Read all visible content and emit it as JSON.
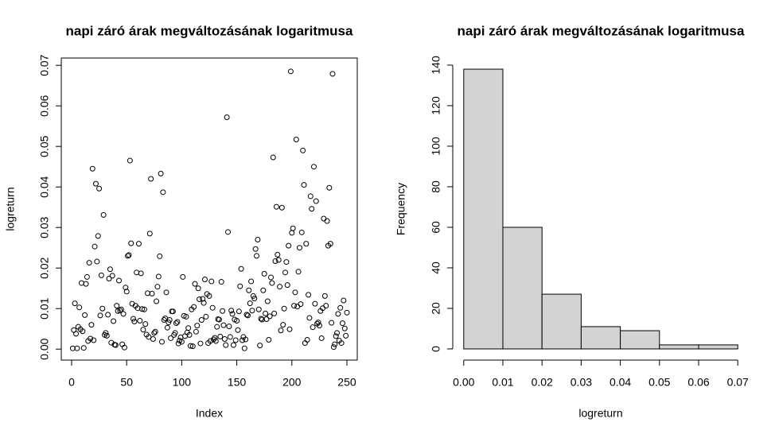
{
  "chart_data": [
    {
      "type": "scatter",
      "title": "napi záró árak megváltozásának logaritmusa",
      "xlabel": "Index",
      "ylabel": "logreturn",
      "color": "#000000",
      "xlim": [
        -9.4,
        259.4
      ],
      "ylim": [
        -0.0027,
        0.0718
      ],
      "xticks": [
        0,
        50,
        100,
        150,
        200,
        250
      ],
      "yticks": [
        {
          "value": 0,
          "label": "0.00"
        },
        {
          "value": 0.01,
          "label": "0.01"
        },
        {
          "value": 0.02,
          "label": "0.02"
        },
        {
          "value": 0.03,
          "label": "0.03"
        },
        {
          "value": 0.04,
          "label": "0.04"
        },
        {
          "value": 0.05,
          "label": "0.05"
        },
        {
          "value": 0.06,
          "label": "0.06"
        },
        {
          "value": 0.07,
          "label": "0.07"
        }
      ],
      "x": [
        1,
        2,
        3,
        4,
        5,
        6,
        7,
        8,
        9,
        10,
        11,
        12,
        13,
        14,
        15,
        16,
        17,
        18,
        19,
        20,
        21,
        22,
        23,
        24,
        25,
        26,
        27,
        28,
        29,
        30,
        31,
        32,
        33,
        34,
        35,
        36,
        37,
        38,
        39,
        40,
        41,
        42,
        43,
        44,
        45,
        46,
        47,
        48,
        49,
        50,
        51,
        52,
        53,
        54,
        55,
        56,
        57,
        58,
        59,
        60,
        61,
        62,
        63,
        64,
        65,
        66,
        67,
        68,
        69,
        70,
        71,
        72,
        73,
        74,
        75,
        76,
        77,
        78,
        79,
        80,
        81,
        82,
        83,
        84,
        85,
        86,
        87,
        88,
        89,
        90,
        91,
        92,
        93,
        94,
        95,
        96,
        97,
        98,
        99,
        100,
        101,
        102,
        103,
        104,
        105,
        106,
        107,
        108,
        109,
        110,
        111,
        112,
        113,
        114,
        115,
        116,
        117,
        118,
        119,
        120,
        121,
        122,
        123,
        124,
        125,
        126,
        127,
        128,
        129,
        130,
        131,
        132,
        133,
        134,
        135,
        136,
        137,
        138,
        139,
        140,
        141,
        142,
        143,
        144,
        145,
        146,
        147,
        148,
        149,
        150,
        151,
        152,
        153,
        154,
        155,
        156,
        157,
        158,
        159,
        160,
        161,
        162,
        163,
        164,
        165,
        166,
        167,
        168,
        169,
        170,
        171,
        172,
        173,
        174,
        175,
        176,
        177,
        178,
        179,
        180,
        181,
        182,
        183,
        184,
        185,
        186,
        187,
        188,
        189,
        190,
        191,
        192,
        193,
        194,
        195,
        196,
        197,
        198,
        199,
        200,
        201,
        202,
        203,
        204,
        205,
        206,
        207,
        208,
        209,
        210,
        211,
        212,
        213,
        214,
        215,
        216,
        217,
        218,
        219,
        220,
        221,
        222,
        223,
        224,
        225,
        226,
        227,
        228,
        229,
        230,
        231,
        232,
        233,
        234,
        235,
        236,
        237,
        238,
        239,
        240,
        241,
        242,
        243,
        244,
        245,
        246,
        247,
        248,
        249,
        250
      ],
      "values": [
        0.0002,
        0.0047,
        0.0113,
        0.0038,
        0.0002,
        0.0055,
        0.0103,
        0.0049,
        0.0163,
        0.0044,
        0.0003,
        0.0084,
        0.0161,
        0.0178,
        0.002,
        0.0213,
        0.0026,
        0.006,
        0.0445,
        0.0022,
        0.0253,
        0.0408,
        0.0216,
        0.0279,
        0.0396,
        0.0083,
        0.0182,
        0.01,
        0.0331,
        0.0035,
        0.004,
        0.0033,
        0.0085,
        0.0174,
        0.0197,
        0.0016,
        0.0181,
        0.0069,
        0.0011,
        0.001,
        0.0107,
        0.0094,
        0.0169,
        0.0095,
        0.0098,
        0.0012,
        0.0087,
        0.0004,
        0.0152,
        0.0142,
        0.023,
        0.0232,
        0.0465,
        0.0261,
        0.0112,
        0.0075,
        0.0068,
        0.0107,
        0.0189,
        0.0101,
        0.026,
        0.007,
        0.0187,
        0.0099,
        0.0048,
        0.0098,
        0.0062,
        0.0036,
        0.0138,
        0.003,
        0.0285,
        0.042,
        0.0137,
        0.0025,
        0.004,
        0.0043,
        0.0118,
        0.0154,
        0.0179,
        0.0229,
        0.0433,
        0.0018,
        0.0387,
        0.0072,
        0.0076,
        0.014,
        0.0053,
        0.0066,
        0.0072,
        0.0027,
        0.0093,
        0.0093,
        0.0035,
        0.004,
        0.0064,
        0.0067,
        0.0014,
        0.0021,
        0.0029,
        0.0018,
        0.0178,
        0.0082,
        0.0032,
        0.008,
        0.0041,
        0.0052,
        0.0035,
        0.0008,
        0.0098,
        0.0007,
        0.0104,
        0.0161,
        0.0043,
        0.0058,
        0.015,
        0.0123,
        0.0014,
        0.0072,
        0.0124,
        0.0114,
        0.0172,
        0.008,
        0.0136,
        0.0015,
        0.0131,
        0.002,
        0.0167,
        0.0102,
        0.0024,
        0.0028,
        0.002,
        0.0055,
        0.0074,
        0.0073,
        0.0031,
        0.0166,
        0.0094,
        0.0059,
        0.0025,
        0.001,
        0.0572,
        0.0289,
        0.0056,
        0.003,
        0.0095,
        0.0087,
        0.001,
        0.0073,
        0.0022,
        0.007,
        0.0047,
        0.0093,
        0.0155,
        0.0198,
        0.0022,
        0.003,
        0.0002,
        0.0024,
        0.0085,
        0.0083,
        0.0145,
        0.0113,
        0.0167,
        0.0095,
        0.0131,
        0.0125,
        0.0247,
        0.023,
        0.027,
        0.0098,
        0.0009,
        0.0075,
        0.0073,
        0.0145,
        0.0186,
        0.0088,
        0.0074,
        0.0118,
        0.0023,
        0.0081,
        0.0177,
        0.0163,
        0.0473,
        0.0088,
        0.0217,
        0.0351,
        0.0233,
        0.022,
        0.0154,
        0.0046,
        0.0349,
        0.006,
        0.01,
        0.0189,
        0.0215,
        0.0158,
        0.0255,
        0.0049,
        0.0685,
        0.0287,
        0.0298,
        0.0107,
        0.014,
        0.0517,
        0.0105,
        0.0191,
        0.025,
        0.0111,
        0.0288,
        0.049,
        0.0405,
        0.0015,
        0.026,
        0.0023,
        0.0134,
        0.0077,
        0.0377,
        0.0346,
        0.0054,
        0.045,
        0.0112,
        0.0365,
        0.0063,
        0.0066,
        0.0058,
        0.0094,
        0.0027,
        0.0101,
        0.0322,
        0.0131,
        0.0107,
        0.0316,
        0.0255,
        0.0398,
        0.026,
        0.0065,
        0.0679,
        0.0005,
        0.0012,
        0.0032,
        0.004,
        0.0087,
        0.0021,
        0.0102,
        0.0015,
        0.0064,
        0.012,
        0.0051,
        0.0033,
        0.009
      ]
    },
    {
      "type": "histogram",
      "title": "napi záró árak megváltozásának logaritmusa",
      "xlabel": "logreturn",
      "ylabel": "Frequency",
      "color": "#d3d3d3",
      "xlim": [
        -0.0028,
        0.0728
      ],
      "ylim": [
        -5.5,
        143.5
      ],
      "xticks": [
        {
          "value": 0,
          "label": "0.00"
        },
        {
          "value": 0.01,
          "label": "0.01"
        },
        {
          "value": 0.02,
          "label": "0.02"
        },
        {
          "value": 0.03,
          "label": "0.03"
        },
        {
          "value": 0.04,
          "label": "0.04"
        },
        {
          "value": 0.05,
          "label": "0.05"
        },
        {
          "value": 0.06,
          "label": "0.06"
        },
        {
          "value": 0.07,
          "label": "0.07"
        }
      ],
      "yticks": [
        0,
        20,
        40,
        60,
        80,
        100,
        120,
        140
      ],
      "bins": [
        0,
        0.01,
        0.02,
        0.03,
        0.04,
        0.05,
        0.06,
        0.07
      ],
      "values": [
        138,
        60,
        27,
        11,
        9,
        2,
        2
      ]
    }
  ]
}
